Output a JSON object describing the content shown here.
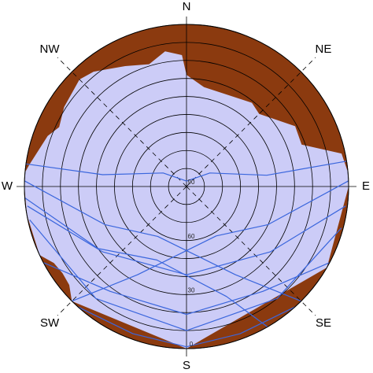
{
  "chart_data": {
    "type": "polar",
    "rlim": [
      90,
      0
    ],
    "rticks": [
      90,
      60,
      30,
      0
    ],
    "minor_rticks": [
      80,
      70,
      50,
      40,
      20,
      10
    ],
    "sky_color": "#ccccf7",
    "track_color": "#3a66dd",
    "directions": [
      {
        "label": "N",
        "az": 0
      },
      {
        "label": "NE",
        "az": 45
      },
      {
        "label": "E",
        "az": 90
      },
      {
        "label": "SE",
        "az": 135
      },
      {
        "label": "S",
        "az": 180
      },
      {
        "label": "SW",
        "az": 225
      },
      {
        "label": "W",
        "az": 270
      },
      {
        "label": "NW",
        "az": 315
      }
    ],
    "obstruction": {
      "color": "#8b3a0f",
      "az": [
        0,
        10,
        38,
        45,
        61,
        70,
        78,
        85,
        90,
        120,
        180,
        225,
        230,
        235,
        240,
        245,
        260,
        270,
        275,
        278,
        290,
        295,
        303,
        315,
        321,
        333,
        343,
        351,
        358,
        360
      ],
      "el": [
        28,
        34,
        31,
        33,
        21,
        22,
        2,
        0,
        0,
        0,
        0,
        0,
        5,
        6,
        5,
        0,
        0,
        0,
        0,
        2,
        8,
        12,
        9,
        6,
        8,
        15,
        19,
        14,
        17,
        28
      ]
    },
    "series": [
      {
        "az": [
          278,
          278,
          300,
          0,
          60,
          82,
          81
        ],
        "el": [
          0,
          43,
          75,
          87,
          75,
          45,
          0
        ]
      },
      {
        "az": [
          263,
          232,
          180,
          128,
          97
        ],
        "el": [
          1,
          31,
          41,
          31,
          1
        ]
      },
      {
        "az": [
          258,
          219,
          180,
          141,
          105
        ],
        "el": [
          1,
          10,
          10,
          10,
          1
        ]
      },
      {
        "az": [
          272,
          245,
          210,
          151,
          135
        ],
        "el": [
          0,
          40,
          58,
          34,
          0
        ]
      },
      {
        "az": [
          88,
          115,
          149,
          209,
          225
        ],
        "el": [
          0,
          40,
          58,
          34,
          0
        ]
      },
      {
        "az": [
          242,
          216,
          180,
          144,
          118
        ],
        "el": [
          0,
          18,
          19,
          18,
          0
        ]
      },
      {
        "az": [
          222,
          200,
          180,
          160,
          138
        ],
        "el": [
          0,
          3,
          1,
          3,
          0
        ]
      },
      {
        "az": [
          266,
          235,
          202,
          160,
          150
        ],
        "el": [
          0,
          30,
          46,
          25,
          0
        ]
      }
    ]
  }
}
